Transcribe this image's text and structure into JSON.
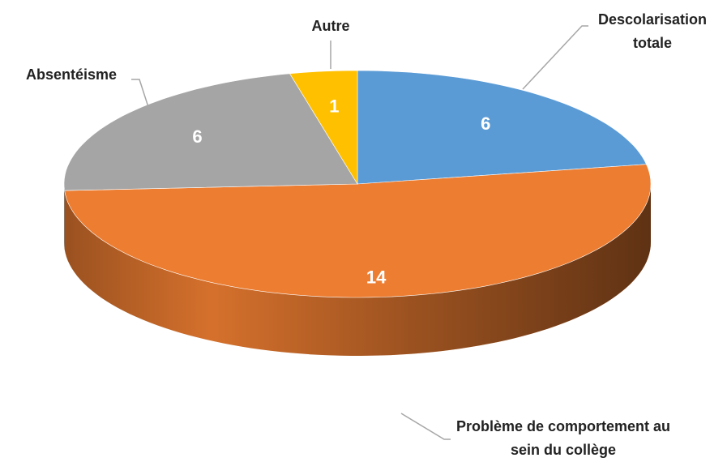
{
  "chart_data": {
    "type": "pie",
    "categories": [
      "Descolarisation totale",
      "Problème de comportement au sein du collège",
      "Absentéisme",
      "Autre"
    ],
    "values": [
      6,
      14,
      6,
      1
    ],
    "colors": [
      "#5b9bd5",
      "#ed7d31",
      "#a5a5a5",
      "#ffc000"
    ]
  }
}
